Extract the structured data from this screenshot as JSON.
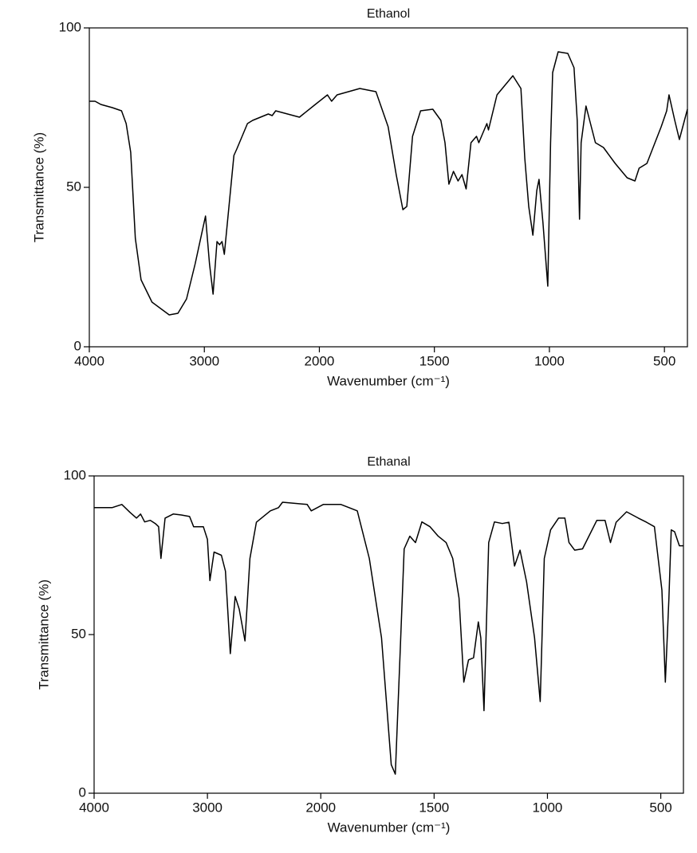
{
  "chart_data": [
    {
      "type": "line",
      "title": "Ethanol",
      "xlabel": "Wavenumber (cm⁻¹)",
      "ylabel": "Transmittance (%)",
      "color": "#000000",
      "xlim": [
        4000,
        400
      ],
      "xticks": [
        4000,
        3000,
        2000,
        1500,
        1000,
        500
      ],
      "ylim": [
        0,
        100
      ],
      "yticks": [
        0,
        50,
        100
      ],
      "x": [
        4000,
        3950,
        3900,
        3800,
        3720,
        3680,
        3640,
        3600,
        3550,
        3455,
        3305,
        3230,
        3155,
        3080,
        2990,
        2955,
        2924,
        2890,
        2868,
        2846,
        2826,
        2743,
        2718,
        2625,
        2580,
        2444,
        2410,
        2380,
        2173,
        2035,
        1965,
        1947,
        1923,
        1824,
        1754,
        1701,
        1666,
        1637,
        1620,
        1595,
        1560,
        1507,
        1472,
        1454,
        1437,
        1417,
        1397,
        1380,
        1362,
        1341,
        1317,
        1307,
        1272,
        1265,
        1228,
        1159,
        1124,
        1107,
        1090,
        1072,
        1055,
        1045,
        1028,
        1007,
        995,
        986,
        962,
        920,
        893,
        879,
        869,
        862,
        841,
        800,
        765,
        714,
        662,
        628,
        610,
        576,
        541,
        514,
        490,
        480,
        455,
        435,
        400
      ],
      "values": [
        77,
        77,
        76,
        75,
        74,
        70,
        61,
        34,
        21,
        14,
        10,
        10.5,
        15,
        26,
        41,
        26,
        16.5,
        33,
        32,
        33,
        29,
        60,
        62,
        70,
        71,
        73,
        72.5,
        74,
        72,
        76,
        79,
        77,
        79,
        81,
        80,
        69,
        54,
        43,
        44,
        66,
        74,
        74.5,
        71,
        64,
        51,
        55,
        52,
        54,
        49.5,
        64,
        66,
        64,
        70,
        68,
        79,
        85,
        81,
        59,
        44,
        35,
        49,
        52.5,
        39,
        19,
        64,
        86,
        92.5,
        92,
        87.5,
        71,
        40,
        64,
        75.5,
        64,
        62.5,
        57.5,
        53,
        52,
        56,
        57.5,
        64,
        69,
        74,
        79,
        71,
        65,
        74.5
      ]
    },
    {
      "type": "line",
      "title": "Ethanal",
      "xlabel": "Wavenumber (cm⁻¹)",
      "ylabel": "Transmittance (%)",
      "color": "#000000",
      "xlim": [
        4000,
        400
      ],
      "xticks": [
        4000,
        3000,
        2000,
        1500,
        1000,
        500
      ],
      "ylim": [
        0,
        100
      ],
      "yticks": [
        0,
        50,
        100
      ],
      "x": [
        4000,
        3842,
        3755,
        3683,
        3626,
        3590,
        3554,
        3504,
        3460,
        3431,
        3410,
        3374,
        3302,
        3230,
        3158,
        3122,
        3036,
        3000,
        2978,
        2942,
        2877,
        2841,
        2798,
        2755,
        2719,
        2669,
        2625,
        2568,
        2445,
        2373,
        2337,
        2120,
        2084,
        1989,
        1911,
        1839,
        1786,
        1732,
        1689,
        1671,
        1650,
        1632,
        1607,
        1582,
        1554,
        1518,
        1482,
        1447,
        1418,
        1390,
        1369,
        1348,
        1326,
        1305,
        1294,
        1280,
        1259,
        1234,
        1199,
        1170,
        1145,
        1121,
        1092,
        1057,
        1032,
        1014,
        986,
        951,
        923,
        905,
        880,
        845,
        782,
        746,
        722,
        697,
        651,
        599,
        563,
        528,
        495,
        480,
        464,
        454,
        439,
        418,
        400
      ],
      "values": [
        90,
        90,
        91,
        88.5,
        86.7,
        88,
        85.5,
        86,
        85,
        84,
        74,
        86.7,
        88,
        87.7,
        87.2,
        84,
        84,
        80,
        67,
        76,
        75,
        70,
        44,
        62,
        58,
        48,
        74,
        85.4,
        89,
        90,
        91.7,
        91,
        89,
        91,
        91,
        89,
        74,
        49,
        9,
        6,
        44,
        77,
        81,
        79,
        85.5,
        84,
        81,
        79,
        74,
        61.5,
        35,
        42,
        42.7,
        54,
        49,
        26,
        79,
        85.5,
        85,
        85.4,
        71.6,
        76.6,
        66.6,
        49,
        28.9,
        74,
        83,
        86.7,
        86.7,
        79,
        76.6,
        77,
        86,
        86,
        79,
        85.4,
        88.7,
        86.7,
        85.4,
        84,
        64,
        35,
        61.5,
        83,
        82.4,
        78,
        78
      ]
    }
  ]
}
